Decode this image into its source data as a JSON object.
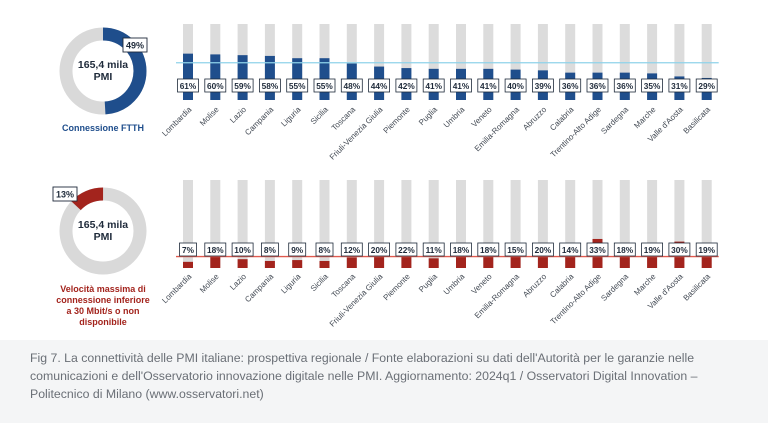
{
  "caption": "Fig 7. La connettività delle PMI italiane: prospettiva regionale / Fonte elaborazioni su dati dell'Autorità per le garanzie nelle comunicazioni e dell'Osservatorio innovazione digitale nelle PMI. Aggiornamento: 2024q1 / Osservatori Digital Innovation – Politecnico di Milano (www.osservatori.net)",
  "colors": {
    "blue": "#1f4e8c",
    "red": "#a3241d",
    "track": "#dcdcdc",
    "line_blue": "#8fd3ea",
    "line_red": "#e05a4f"
  },
  "chart_data": [
    {
      "type": "bar",
      "donut": {
        "center_line1": "165,4 mila",
        "center_line2": "PMI",
        "value": 49,
        "value_label": "49%",
        "caption": "Connessione FTTH",
        "color": "#1f4e8c"
      },
      "categories": [
        "Lombardia",
        "Molise",
        "Lazio",
        "Campania",
        "Liguria",
        "Sicilia",
        "Toscana",
        "Friuli-Venezia Giulia",
        "Piemonte",
        "Puglia",
        "Umbria",
        "Veneto",
        "Emilia-Romagna",
        "Abruzzo",
        "Calabria",
        "Trentino-Alto Adige",
        "Sardegna",
        "Marche",
        "Valle d'Aosta",
        "Basilicata"
      ],
      "values": [
        61,
        60,
        59,
        58,
        55,
        55,
        48,
        44,
        42,
        41,
        41,
        41,
        40,
        39,
        36,
        36,
        36,
        35,
        31,
        29
      ],
      "value_labels": [
        "61%",
        "60%",
        "59%",
        "58%",
        "55%",
        "55%",
        "48%",
        "44%",
        "42%",
        "41%",
        "41%",
        "41%",
        "40%",
        "39%",
        "36%",
        "36%",
        "36%",
        "35%",
        "31%",
        "29%"
      ],
      "reference_line": 49,
      "ylim": [
        0,
        100
      ]
    },
    {
      "type": "bar",
      "donut": {
        "center_line1": "165,4 mila",
        "center_line2": "PMI",
        "value": 13,
        "value_label": "13%",
        "caption_lines": [
          "Velocità massima di",
          "connessione inferiore",
          "a 30 Mbit/s o non",
          "disponibile"
        ],
        "color": "#a3241d"
      },
      "categories": [
        "Lombardia",
        "Molise",
        "Lazio",
        "Campania",
        "Liguria",
        "Sicilia",
        "Toscana",
        "Friuli-Venezia Giulia",
        "Piemonte",
        "Puglia",
        "Umbria",
        "Veneto",
        "Emilia-Romagna",
        "Abruzzo",
        "Calabria",
        "Trentino-Alto Adige",
        "Sardegna",
        "Marche",
        "Valle d'Aosta",
        "Basilicata"
      ],
      "values": [
        7,
        18,
        10,
        8,
        9,
        8,
        12,
        20,
        22,
        11,
        18,
        18,
        15,
        20,
        14,
        33,
        18,
        19,
        30,
        19
      ],
      "value_labels": [
        "7%",
        "18%",
        "10%",
        "8%",
        "9%",
        "8%",
        "12%",
        "20%",
        "22%",
        "11%",
        "18%",
        "18%",
        "15%",
        "20%",
        "14%",
        "33%",
        "18%",
        "19%",
        "30%",
        "19%"
      ],
      "reference_line": 13,
      "ylim": [
        0,
        100
      ]
    }
  ]
}
